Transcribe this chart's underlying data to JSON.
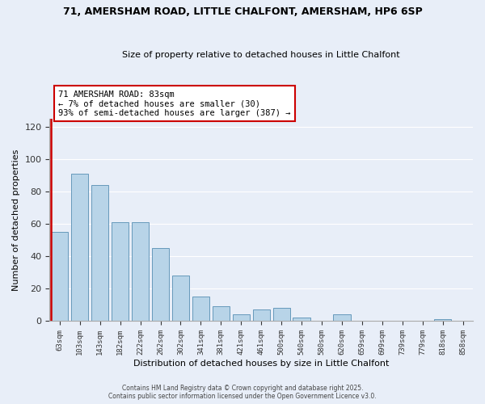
{
  "title1": "71, AMERSHAM ROAD, LITTLE CHALFONT, AMERSHAM, HP6 6SP",
  "title2": "Size of property relative to detached houses in Little Chalfont",
  "xlabel": "Distribution of detached houses by size in Little Chalfont",
  "ylabel": "Number of detached properties",
  "bar_labels": [
    "63sqm",
    "103sqm",
    "143sqm",
    "182sqm",
    "222sqm",
    "262sqm",
    "302sqm",
    "341sqm",
    "381sqm",
    "421sqm",
    "461sqm",
    "500sqm",
    "540sqm",
    "580sqm",
    "620sqm",
    "659sqm",
    "699sqm",
    "739sqm",
    "779sqm",
    "818sqm",
    "858sqm"
  ],
  "bar_values": [
    55,
    91,
    84,
    61,
    61,
    45,
    28,
    15,
    9,
    4,
    7,
    8,
    2,
    0,
    4,
    0,
    0,
    0,
    0,
    1,
    0
  ],
  "bar_color": "#b8d4e8",
  "bar_edge_color": "#6699bb",
  "highlight_line_color": "#cc0000",
  "annotation_title": "71 AMERSHAM ROAD: 83sqm",
  "annotation_line1": "← 7% of detached houses are smaller (30)",
  "annotation_line2": "93% of semi-detached houses are larger (387) →",
  "annotation_box_color": "#ffffff",
  "annotation_box_edge": "#cc0000",
  "ylim": [
    0,
    125
  ],
  "yticks": [
    0,
    20,
    40,
    60,
    80,
    100,
    120
  ],
  "background_color": "#e8eef8",
  "grid_color": "#ffffff",
  "footer1": "Contains HM Land Registry data © Crown copyright and database right 2025.",
  "footer2": "Contains public sector information licensed under the Open Government Licence v3.0."
}
